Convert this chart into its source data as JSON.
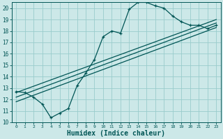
{
  "title": "",
  "xlabel": "Humidex (Indice chaleur)",
  "bg_color": "#cce8e8",
  "grid_color": "#99cccc",
  "line_color": "#005555",
  "xlim": [
    -0.5,
    23.5
  ],
  "ylim": [
    10,
    20.5
  ],
  "xticks": [
    0,
    1,
    2,
    3,
    4,
    5,
    6,
    7,
    8,
    9,
    10,
    11,
    12,
    13,
    14,
    15,
    16,
    17,
    18,
    19,
    20,
    21,
    22,
    23
  ],
  "yticks": [
    10,
    11,
    12,
    13,
    14,
    15,
    16,
    17,
    18,
    19,
    20
  ],
  "curve1_x": [
    0,
    1,
    2,
    3,
    4,
    5,
    6,
    7,
    8,
    9,
    10,
    11,
    12,
    13,
    14,
    15,
    16,
    17,
    18,
    19,
    20,
    21,
    22,
    23
  ],
  "curve1_y": [
    12.7,
    12.6,
    12.2,
    11.6,
    10.4,
    10.8,
    11.2,
    13.2,
    14.3,
    15.5,
    17.5,
    18.0,
    17.8,
    19.9,
    20.5,
    20.5,
    20.2,
    20.0,
    19.3,
    18.8,
    18.5,
    18.5,
    18.2,
    18.5
  ],
  "line2_x": [
    0,
    23
  ],
  "line2_y": [
    11.8,
    18.3
  ],
  "line3_x": [
    0,
    23
  ],
  "line3_y": [
    12.2,
    18.7
  ],
  "line4_x": [
    0,
    23
  ],
  "line4_y": [
    12.6,
    19.0
  ],
  "xlabel_fontsize": 7,
  "tick_fontsize": 5.5
}
